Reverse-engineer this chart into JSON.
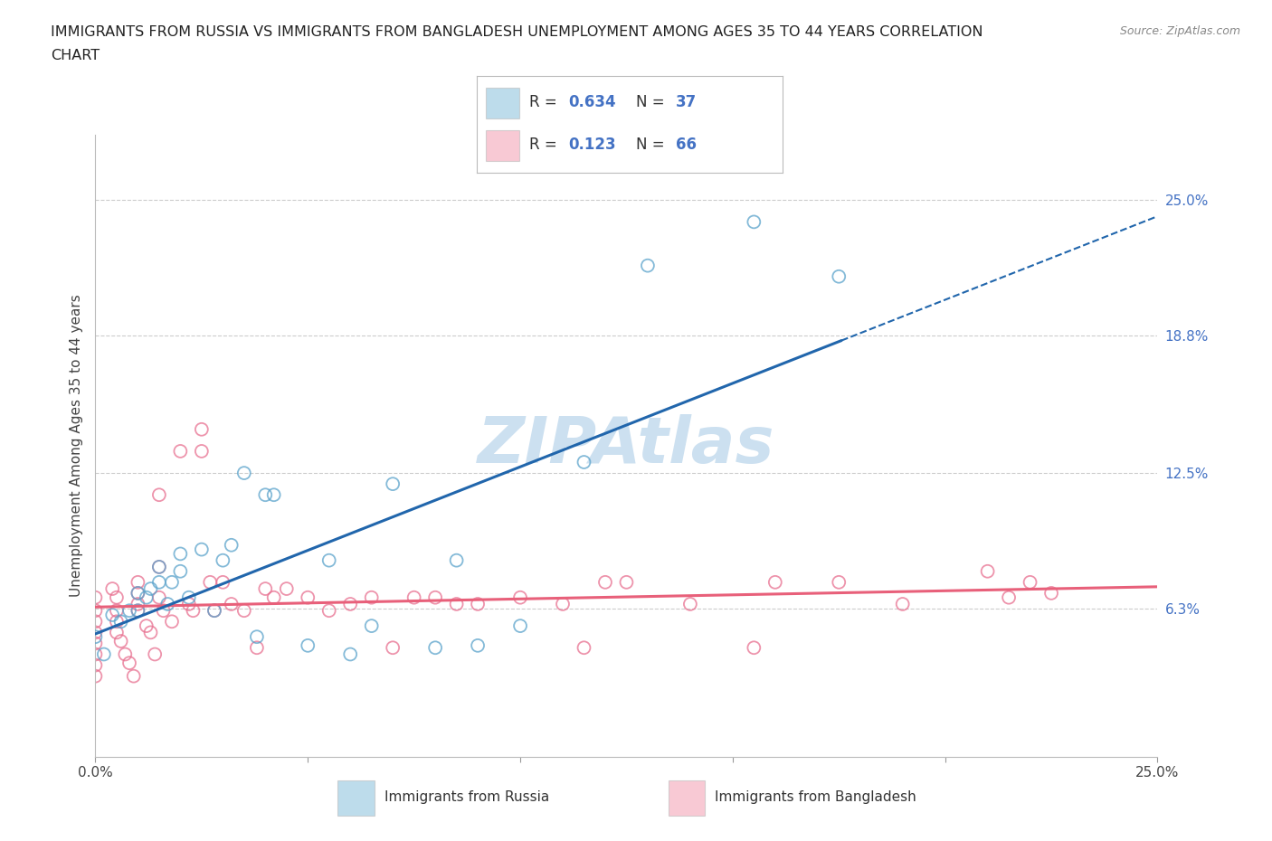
{
  "title_line1": "IMMIGRANTS FROM RUSSIA VS IMMIGRANTS FROM BANGLADESH UNEMPLOYMENT AMONG AGES 35 TO 44 YEARS CORRELATION",
  "title_line2": "CHART",
  "source_text": "Source: ZipAtlas.com",
  "ylabel": "Unemployment Among Ages 35 to 44 years",
  "xlim": [
    0.0,
    0.25
  ],
  "ylim": [
    -0.005,
    0.28
  ],
  "russia_R": 0.634,
  "russia_N": 37,
  "bangladesh_R": 0.123,
  "bangladesh_N": 66,
  "russia_color": "#92c5de",
  "russia_edge_color": "#5ba3cb",
  "bangladesh_color": "#f4a6b8",
  "bangladesh_edge_color": "#e87090",
  "russia_line_color": "#2166ac",
  "bangladesh_line_color": "#e8607a",
  "watermark_color": "#cce0f0",
  "grid_color": "#cccccc",
  "russia_scatter_x": [
    0.0,
    0.002,
    0.004,
    0.006,
    0.008,
    0.01,
    0.01,
    0.012,
    0.013,
    0.015,
    0.015,
    0.017,
    0.018,
    0.02,
    0.02,
    0.022,
    0.025,
    0.028,
    0.03,
    0.032,
    0.035,
    0.038,
    0.04,
    0.042,
    0.05,
    0.055,
    0.06,
    0.065,
    0.07,
    0.08,
    0.085,
    0.09,
    0.1,
    0.115,
    0.13,
    0.155,
    0.175
  ],
  "russia_scatter_y": [
    0.05,
    0.042,
    0.06,
    0.057,
    0.062,
    0.07,
    0.062,
    0.068,
    0.072,
    0.075,
    0.082,
    0.065,
    0.075,
    0.08,
    0.088,
    0.068,
    0.09,
    0.062,
    0.085,
    0.092,
    0.125,
    0.05,
    0.115,
    0.115,
    0.046,
    0.085,
    0.042,
    0.055,
    0.12,
    0.045,
    0.085,
    0.046,
    0.055,
    0.13,
    0.22,
    0.24,
    0.215
  ],
  "bangladesh_scatter_x": [
    0.0,
    0.0,
    0.0,
    0.0,
    0.0,
    0.0,
    0.0,
    0.0,
    0.004,
    0.005,
    0.005,
    0.005,
    0.005,
    0.006,
    0.007,
    0.008,
    0.009,
    0.01,
    0.01,
    0.01,
    0.01,
    0.012,
    0.013,
    0.014,
    0.015,
    0.015,
    0.015,
    0.016,
    0.018,
    0.02,
    0.022,
    0.023,
    0.025,
    0.025,
    0.027,
    0.028,
    0.03,
    0.032,
    0.035,
    0.038,
    0.04,
    0.042,
    0.045,
    0.05,
    0.055,
    0.06,
    0.065,
    0.07,
    0.075,
    0.08,
    0.085,
    0.09,
    0.1,
    0.11,
    0.115,
    0.12,
    0.125,
    0.14,
    0.155,
    0.16,
    0.175,
    0.19,
    0.21,
    0.215,
    0.22,
    0.225
  ],
  "bangladesh_scatter_y": [
    0.068,
    0.062,
    0.057,
    0.052,
    0.047,
    0.042,
    0.037,
    0.032,
    0.072,
    0.068,
    0.062,
    0.057,
    0.052,
    0.048,
    0.042,
    0.038,
    0.032,
    0.075,
    0.07,
    0.065,
    0.062,
    0.055,
    0.052,
    0.042,
    0.115,
    0.082,
    0.068,
    0.062,
    0.057,
    0.135,
    0.065,
    0.062,
    0.145,
    0.135,
    0.075,
    0.062,
    0.075,
    0.065,
    0.062,
    0.045,
    0.072,
    0.068,
    0.072,
    0.068,
    0.062,
    0.065,
    0.068,
    0.045,
    0.068,
    0.068,
    0.065,
    0.065,
    0.068,
    0.065,
    0.045,
    0.075,
    0.075,
    0.065,
    0.045,
    0.075,
    0.075,
    0.065,
    0.08,
    0.068,
    0.075,
    0.07
  ],
  "legend_label_russia": "Immigrants from Russia",
  "legend_label_bangladesh": "Immigrants from Bangladesh"
}
